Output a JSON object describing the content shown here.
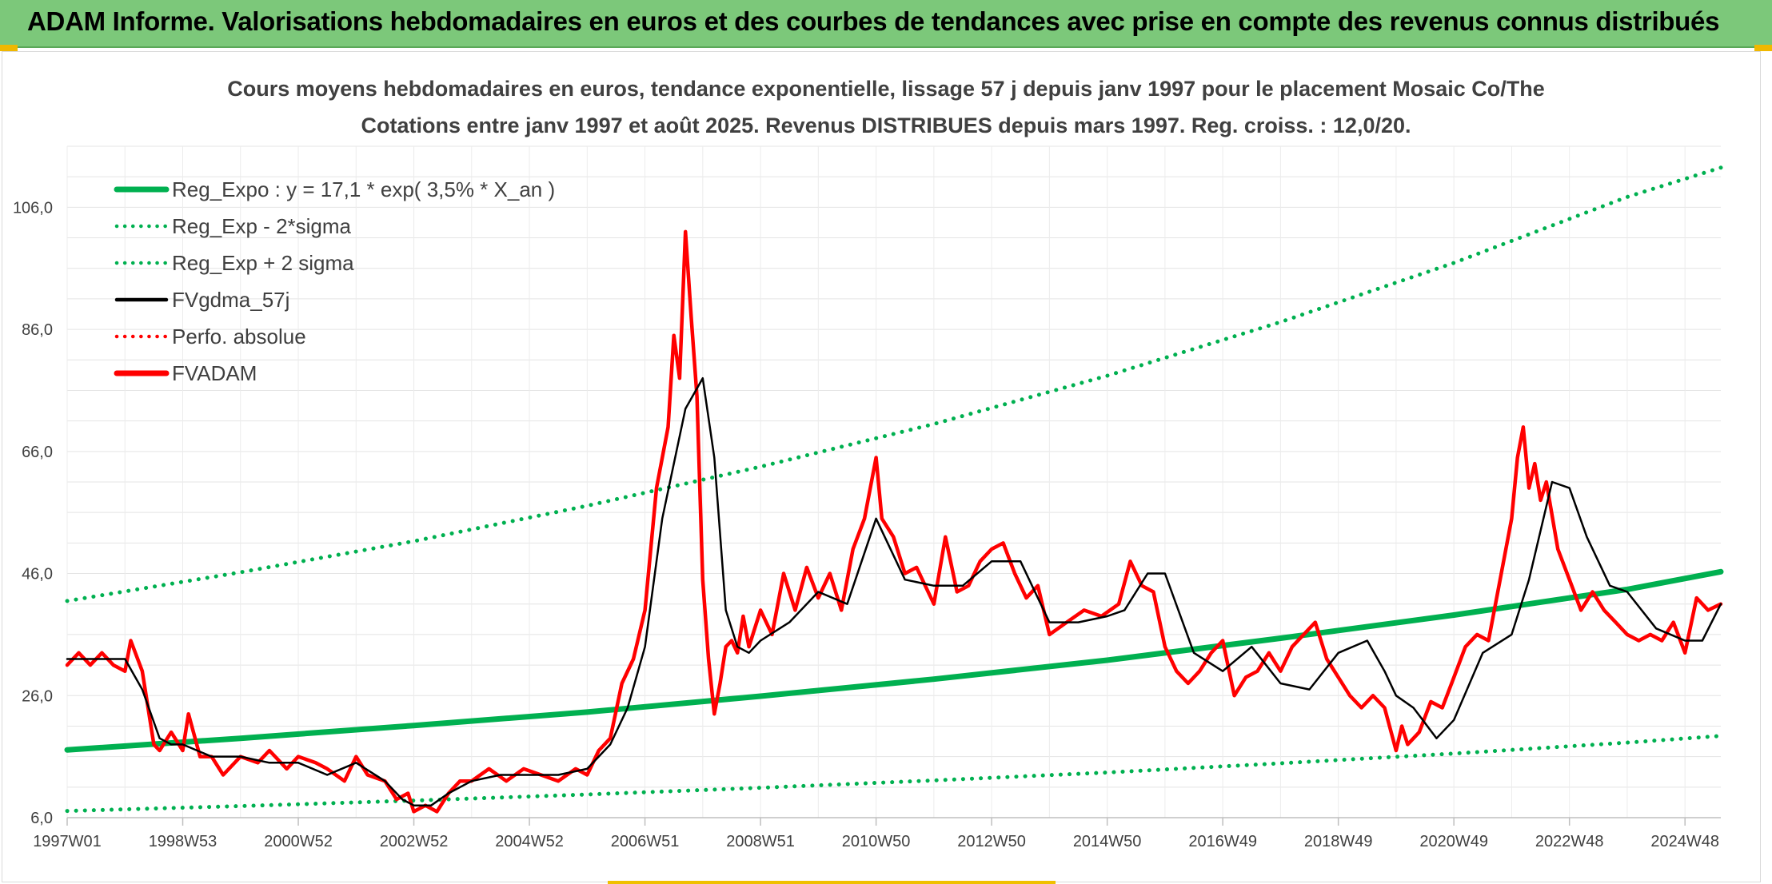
{
  "banner": {
    "title": "ADAM Informe. Valorisations hebdomadaires en euros et des courbes de tendances avec prise en compte des revenus connus distribués"
  },
  "colors": {
    "green": "#00b050",
    "red": "#ff0000",
    "black": "#000000",
    "banner": "#7cc87a",
    "accent": "#f0b800"
  },
  "chart_data": {
    "type": "line",
    "title": "Cours moyens hebdomadaires en euros, tendance exponentielle, lissage 57 j depuis janv 1997 pour le placement Mosaic Co/The",
    "subtitle": "Cotations entre janv 1997 et août 2025. Revenus DISTRIBUES depuis mars 1997. Reg. croiss. : 12,0/20.",
    "xlabel": "",
    "ylabel": "",
    "x_range": [
      1997.0,
      2025.62
    ],
    "ylim": [
      6,
      116
    ],
    "y_ticks": [
      6,
      26,
      46,
      66,
      86,
      106
    ],
    "y_tick_labels": [
      "6,0",
      "26,0",
      "46,0",
      "66,0",
      "86,0",
      "106,0"
    ],
    "x_tick_labels": [
      "1997W01",
      "1998W53",
      "2000W52",
      "2002W52",
      "2004W52",
      "2006W51",
      "2008W51",
      "2010W50",
      "2012W50",
      "2014W50",
      "2016W49",
      "2018W49",
      "2020W49",
      "2022W48",
      "2024W48"
    ],
    "x_ticks": [
      1997.0,
      1999.0,
      2001.0,
      2003.0,
      2005.0,
      2007.0,
      2009.0,
      2011.0,
      2013.0,
      2015.0,
      2017.0,
      2019.0,
      2021.0,
      2023.0,
      2025.0
    ],
    "grid": true,
    "legend_position": "top-left",
    "legend": [
      {
        "label": "Reg_Expo : y = 17,1 * exp( 3,5% *  X_an )",
        "color": "#00b050",
        "style": "solid-thick"
      },
      {
        "label": "Reg_Exp - 2*sigma",
        "color": "#00b050",
        "style": "dotted"
      },
      {
        "label": "Reg_Exp + 2 sigma",
        "color": "#00b050",
        "style": "dotted"
      },
      {
        "label": "FVgdma_57j",
        "color": "#000000",
        "style": "solid"
      },
      {
        "label": "Perfo. absolue",
        "color": "#ff0000",
        "style": "dotted"
      },
      {
        "label": "FVADAM",
        "color": "#ff0000",
        "style": "solid-thick"
      }
    ],
    "series": [
      {
        "name": "Reg_Expo : y = 17,1 * exp( 3,5% *  X_an )",
        "x": [
          1997.0,
          2000.0,
          2003.0,
          2006.0,
          2009.0,
          2012.0,
          2015.0,
          2018.0,
          2021.0,
          2024.0,
          2025.62
        ],
        "y": [
          17.1,
          19.0,
          21.1,
          23.3,
          25.9,
          28.7,
          31.8,
          35.4,
          39.2,
          43.4,
          46.3
        ]
      },
      {
        "name": "Reg_Exp - 2*sigma",
        "x": [
          1997.0,
          2000.0,
          2003.0,
          2006.0,
          2009.0,
          2012.0,
          2015.0,
          2018.0,
          2021.0,
          2024.0,
          2025.62
        ],
        "y": [
          7.1,
          7.9,
          8.8,
          9.8,
          10.9,
          12.1,
          13.4,
          14.9,
          16.5,
          18.3,
          19.4
        ]
      },
      {
        "name": "Reg_Exp + 2 sigma",
        "x": [
          1997.0,
          2000.0,
          2003.0,
          2006.0,
          2009.0,
          2012.0,
          2015.0,
          2018.0,
          2021.0,
          2024.0,
          2025.62
        ],
        "y": [
          41.5,
          46.2,
          51.3,
          57.1,
          63.5,
          70.5,
          78.4,
          87.2,
          96.9,
          107.7,
          112.5
        ]
      },
      {
        "name": "FVgdma_57j",
        "x": [
          1997.0,
          1997.3,
          1997.7,
          1998.0,
          1998.3,
          1998.6,
          1998.8,
          1999.0,
          1999.5,
          2000.0,
          2000.5,
          2001.0,
          2001.5,
          2002.0,
          2002.5,
          2002.8,
          2003.0,
          2003.3,
          2003.6,
          2004.0,
          2004.5,
          2005.0,
          2005.5,
          2006.0,
          2006.4,
          2006.7,
          2007.0,
          2007.3,
          2007.7,
          2008.0,
          2008.2,
          2008.4,
          2008.6,
          2008.8,
          2009.0,
          2009.5,
          2010.0,
          2010.5,
          2011.0,
          2011.5,
          2012.0,
          2012.5,
          2013.0,
          2013.5,
          2014.0,
          2014.5,
          2015.0,
          2015.3,
          2015.7,
          2016.0,
          2016.5,
          2017.0,
          2017.5,
          2018.0,
          2018.5,
          2019.0,
          2019.5,
          2019.8,
          2020.0,
          2020.3,
          2020.7,
          2021.0,
          2021.5,
          2022.0,
          2022.3,
          2022.7,
          2023.0,
          2023.3,
          2023.7,
          2024.0,
          2024.5,
          2025.0,
          2025.3,
          2025.62
        ],
        "y": [
          32,
          32,
          32,
          32,
          27,
          19,
          18,
          18,
          16,
          16,
          15,
          15,
          13,
          15,
          12,
          9,
          8,
          8,
          10,
          12,
          13,
          13,
          13,
          14,
          18,
          24,
          34,
          55,
          73,
          78,
          65,
          40,
          34,
          33,
          35,
          38,
          43,
          41,
          55,
          45,
          44,
          44,
          48,
          48,
          38,
          38,
          39,
          40,
          46,
          46,
          33,
          30,
          34,
          28,
          27,
          33,
          35,
          30,
          26,
          24,
          19,
          22,
          33,
          36,
          45,
          61,
          60,
          52,
          44,
          43,
          37,
          35,
          35,
          41
        ]
      },
      {
        "name": "FVADAM",
        "x": [
          1997.0,
          1997.2,
          1997.4,
          1997.6,
          1997.8,
          1998.0,
          1998.1,
          1998.3,
          1998.5,
          1998.6,
          1998.8,
          1999.0,
          1999.1,
          1999.3,
          1999.5,
          1999.7,
          2000.0,
          2000.3,
          2000.5,
          2000.8,
          2001.0,
          2001.3,
          2001.5,
          2001.8,
          2002.0,
          2002.2,
          2002.5,
          2002.7,
          2002.9,
          2003.0,
          2003.2,
          2003.4,
          2003.6,
          2003.8,
          2004.0,
          2004.3,
          2004.6,
          2004.9,
          2005.2,
          2005.5,
          2005.8,
          2006.0,
          2006.2,
          2006.4,
          2006.6,
          2006.8,
          2007.0,
          2007.2,
          2007.4,
          2007.5,
          2007.6,
          2007.7,
          2007.8,
          2007.9,
          2008.0,
          2008.1,
          2008.2,
          2008.3,
          2008.4,
          2008.5,
          2008.6,
          2008.7,
          2008.8,
          2009.0,
          2009.2,
          2009.4,
          2009.6,
          2009.8,
          2010.0,
          2010.2,
          2010.4,
          2010.6,
          2010.8,
          2011.0,
          2011.1,
          2011.3,
          2011.5,
          2011.7,
          2012.0,
          2012.2,
          2012.4,
          2012.6,
          2012.8,
          2013.0,
          2013.2,
          2013.4,
          2013.6,
          2013.8,
          2014.0,
          2014.3,
          2014.6,
          2014.9,
          2015.2,
          2015.4,
          2015.6,
          2015.8,
          2016.0,
          2016.2,
          2016.4,
          2016.6,
          2016.8,
          2017.0,
          2017.2,
          2017.4,
          2017.6,
          2017.8,
          2018.0,
          2018.2,
          2018.4,
          2018.6,
          2018.8,
          2019.0,
          2019.2,
          2019.4,
          2019.6,
          2019.8,
          2020.0,
          2020.1,
          2020.2,
          2020.4,
          2020.6,
          2020.8,
          2021.0,
          2021.2,
          2021.4,
          2021.6,
          2021.8,
          2022.0,
          2022.1,
          2022.2,
          2022.3,
          2022.4,
          2022.5,
          2022.6,
          2022.8,
          2023.0,
          2023.2,
          2023.4,
          2023.6,
          2023.8,
          2024.0,
          2024.2,
          2024.4,
          2024.6,
          2024.8,
          2025.0,
          2025.2,
          2025.4,
          2025.62
        ],
        "y": [
          31,
          33,
          31,
          33,
          31,
          30,
          35,
          30,
          18,
          17,
          20,
          17,
          23,
          16,
          16,
          13,
          16,
          15,
          17,
          14,
          16,
          15,
          14,
          12,
          16,
          13,
          12,
          9,
          10,
          7,
          8,
          7,
          10,
          12,
          12,
          14,
          12,
          14,
          13,
          12,
          14,
          13,
          17,
          19,
          28,
          32,
          40,
          60,
          70,
          85,
          78,
          102,
          88,
          75,
          45,
          32,
          23,
          28,
          34,
          35,
          33,
          39,
          34,
          40,
          36,
          46,
          40,
          47,
          42,
          46,
          40,
          50,
          55,
          65,
          55,
          52,
          46,
          47,
          41,
          52,
          43,
          44,
          48,
          50,
          51,
          46,
          42,
          44,
          36,
          38,
          40,
          39,
          41,
          48,
          44,
          43,
          34,
          30,
          28,
          30,
          33,
          35,
          26,
          29,
          30,
          33,
          30,
          34,
          36,
          38,
          32,
          29,
          26,
          24,
          26,
          24,
          17,
          21,
          18,
          20,
          25,
          24,
          29,
          34,
          36,
          35,
          45,
          55,
          65,
          70,
          60,
          64,
          58,
          61,
          50,
          45,
          40,
          43,
          40,
          38,
          36,
          35,
          36,
          35,
          38,
          33,
          42,
          40,
          41
        ]
      }
    ]
  }
}
